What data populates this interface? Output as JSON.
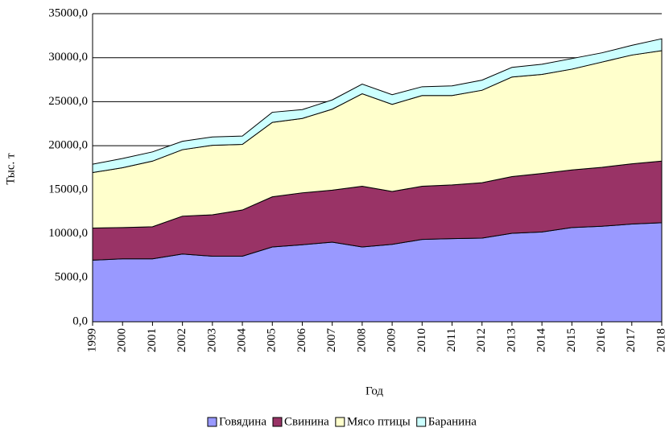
{
  "chart_data": {
    "type": "stacked-area",
    "y_label": "Тыс. т",
    "x_label": "Год",
    "categories": [
      "1999",
      "2000",
      "2001",
      "2002",
      "2003",
      "2004",
      "2005",
      "2006",
      "2007",
      "2008",
      "2009",
      "2010",
      "2011",
      "2012",
      "2013",
      "2014",
      "2015",
      "2016",
      "2017",
      "2018"
    ],
    "series": [
      {
        "name": "Говядина",
        "color": "#9999ff",
        "values": [
          7000,
          7150,
          7150,
          7700,
          7450,
          7450,
          8500,
          8750,
          9050,
          8500,
          8800,
          9350,
          9450,
          9500,
          10050,
          10200,
          10700,
          10850,
          11100,
          11250
        ]
      },
      {
        "name": "Свинина",
        "color": "#993366",
        "values": [
          3650,
          3550,
          3650,
          4300,
          4700,
          5250,
          5700,
          5900,
          5900,
          6900,
          6000,
          6050,
          6100,
          6300,
          6450,
          6650,
          6550,
          6700,
          6850,
          7000
        ]
      },
      {
        "name": "Мясо птицы",
        "color": "#ffffcc",
        "values": [
          6300,
          6800,
          7450,
          7550,
          7900,
          7450,
          8450,
          8450,
          9200,
          10500,
          9900,
          10300,
          10150,
          10500,
          11300,
          11250,
          11450,
          11950,
          12350,
          12550
        ]
      },
      {
        "name": "Баранина",
        "color": "#ccffff",
        "values": [
          950,
          1050,
          1050,
          950,
          950,
          950,
          1150,
          1000,
          1050,
          1100,
          1100,
          1000,
          1100,
          1150,
          1100,
          1150,
          1200,
          1050,
          1100,
          1350
        ]
      }
    ],
    "ylim": [
      0,
      35000
    ],
    "yticks": [
      {
        "value": 0,
        "label": "0,0"
      },
      {
        "value": 5000,
        "label": "5000,0"
      },
      {
        "value": 10000,
        "label": "10000,0"
      },
      {
        "value": 15000,
        "label": "15000,0"
      },
      {
        "value": 20000,
        "label": "20000,0"
      },
      {
        "value": 25000,
        "label": "25000,0"
      },
      {
        "value": 30000,
        "label": "30000,0"
      },
      {
        "value": 35000,
        "label": "35000,0"
      }
    ],
    "grid": true
  }
}
